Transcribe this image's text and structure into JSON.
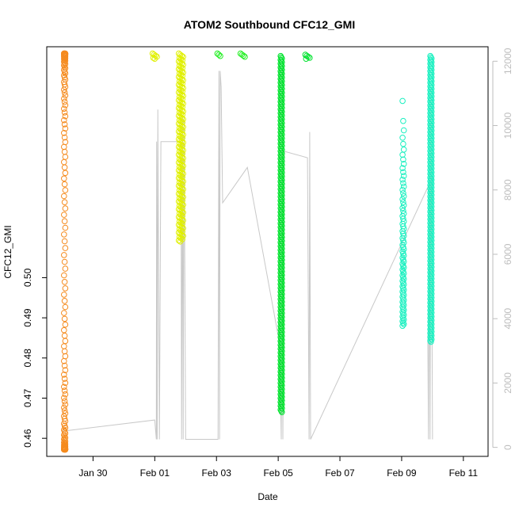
{
  "chart_data": {
    "type": "scatter",
    "title": "ATOM2 Southbound CFC12_GMI",
    "xlabel": "Date",
    "ylabel": "CFC12_GMI",
    "x_tick_labels": [
      "Jan 30",
      "Feb 01",
      "Feb 03",
      "Feb 05",
      "Feb 07",
      "Feb 09",
      "Feb 11"
    ],
    "x_tick_days": [
      30,
      32,
      34,
      36,
      38,
      40,
      42
    ],
    "xlim_days": [
      28.5,
      42.8
    ],
    "ylim": [
      0.4555,
      0.5575
    ],
    "y_ticks": [
      0.46,
      0.47,
      0.48,
      0.49,
      0.5
    ],
    "y_tick_labels": [
      "0.46",
      "0.47",
      "0.48",
      "0.49",
      "0.50"
    ],
    "y2_ticks": [
      0,
      2000,
      4000,
      6000,
      8000,
      10000,
      12000
    ],
    "y2_tick_labels": [
      "0",
      "2000",
      "4000",
      "6000",
      "8000",
      "10000",
      "12000"
    ],
    "y2lim": [
      -280,
      12450
    ],
    "grid": false,
    "legend": "none",
    "colors": {
      "seg1": "#f58b1e",
      "seg2": "#e0f000",
      "seg3": "#22ee22",
      "seg4": "#00e22e",
      "seg5": "#1af0c0",
      "secondary": "#c8c8c8",
      "axis": "#000000",
      "right_axis": "#bdbdbd"
    },
    "segments": [
      {
        "x_day": 29.08,
        "y_min": 0.4572,
        "y_max": 0.5558,
        "density": "dense_top_bottom"
      },
      {
        "x_day": 32.0,
        "y_min": 0.5545,
        "y_max": 0.5558,
        "density": "cluster"
      },
      {
        "x_day": 32.85,
        "y_min": 0.509,
        "y_max": 0.5558,
        "density": "cluster"
      },
      {
        "x_day": 34.1,
        "y_min": 0.5552,
        "y_max": 0.5558,
        "density": "cluster"
      },
      {
        "x_day": 34.85,
        "y_min": 0.555,
        "y_max": 0.5558,
        "density": "cluster"
      },
      {
        "x_day": 36.1,
        "y_min": 0.4665,
        "y_max": 0.5552,
        "density": "dense"
      },
      {
        "x_day": 36.95,
        "y_min": 0.5545,
        "y_max": 0.5555,
        "density": "cluster"
      },
      {
        "x_day": 40.05,
        "y_min": 0.488,
        "y_max": 0.544,
        "density": "sparse_top_dense_bottom"
      },
      {
        "x_day": 40.95,
        "y_min": 0.484,
        "y_max": 0.5552,
        "density": "dense"
      }
    ],
    "secondary_series": {
      "name": "",
      "points": [
        [
          29.0,
          500
        ],
        [
          32.0,
          850
        ],
        [
          32.05,
          250
        ],
        [
          32.06,
          9500
        ],
        [
          32.08,
          250
        ],
        [
          32.1,
          10500
        ],
        [
          32.12,
          6200
        ],
        [
          32.15,
          250
        ],
        [
          32.2,
          9500
        ],
        [
          32.85,
          9500
        ],
        [
          32.87,
          250
        ],
        [
          32.9,
          10300
        ],
        [
          32.92,
          250
        ],
        [
          32.95,
          10300
        ],
        [
          33.0,
          250
        ],
        [
          34.05,
          250
        ],
        [
          34.08,
          11700
        ],
        [
          34.1,
          250
        ],
        [
          34.12,
          11700
        ],
        [
          34.15,
          11200
        ],
        [
          34.2,
          7600
        ],
        [
          35.0,
          8700
        ],
        [
          36.05,
          3200
        ],
        [
          36.1,
          250
        ],
        [
          36.12,
          11800
        ],
        [
          36.15,
          250
        ],
        [
          36.2,
          9200
        ],
        [
          36.95,
          9000
        ],
        [
          37.0,
          250
        ],
        [
          37.02,
          9800
        ],
        [
          37.05,
          250
        ],
        [
          41.0,
          8400
        ],
        [
          40.85,
          3300
        ],
        [
          40.87,
          250
        ],
        [
          40.9,
          8800
        ],
        [
          40.92,
          250
        ],
        [
          40.95,
          11200
        ],
        [
          41.0,
          250
        ]
      ]
    }
  }
}
